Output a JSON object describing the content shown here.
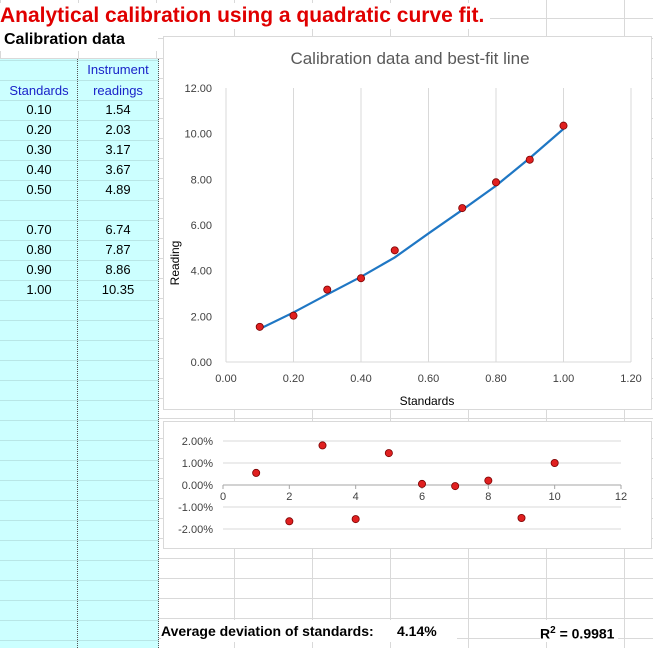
{
  "sheet": {
    "title": "Analytical calibration using a quadratic curve fit.",
    "section_title": "Calibration data",
    "columns": {
      "standards_header": "Standards",
      "readings_header_line1": "Instrument",
      "readings_header_line2": "readings"
    },
    "rows": [
      {
        "standard": "0.10",
        "reading": "1.54"
      },
      {
        "standard": "0.20",
        "reading": "2.03"
      },
      {
        "standard": "0.30",
        "reading": "3.17"
      },
      {
        "standard": "0.40",
        "reading": "3.67"
      },
      {
        "standard": "0.50",
        "reading": "4.89"
      },
      {
        "standard": "",
        "reading": ""
      },
      {
        "standard": "0.70",
        "reading": "6.74"
      },
      {
        "standard": "0.80",
        "reading": "7.87"
      },
      {
        "standard": "0.90",
        "reading": "8.86"
      },
      {
        "standard": "1.00",
        "reading": "10.35"
      }
    ],
    "avg_label": "Average deviation of standards:",
    "avg_value": "4.14%",
    "r2_label": "R",
    "r2_sup": "2",
    "r2_value": " = 0.9981"
  },
  "colors": {
    "title": "#e00000",
    "header_text": "#1a23c9",
    "data_bg": "#ccffff",
    "line": "#1f77c4",
    "marker": "#e02020"
  },
  "chart_data": [
    {
      "type": "scatter",
      "title": "Calibration data and best-fit line",
      "xlabel": "Standards",
      "ylabel": "Reading",
      "xlim": [
        0,
        1.2
      ],
      "ylim": [
        0,
        12
      ],
      "xticks": [
        "0.00",
        "0.20",
        "0.40",
        "0.60",
        "0.80",
        "1.00",
        "1.20"
      ],
      "yticks": [
        "0.00",
        "2.00",
        "4.00",
        "6.00",
        "8.00",
        "10.00",
        "12.00"
      ],
      "grid": "vertical",
      "points": {
        "x": [
          0.1,
          0.2,
          0.3,
          0.4,
          0.5,
          0.7,
          0.8,
          0.9,
          1.0
        ],
        "y": [
          1.54,
          2.03,
          3.17,
          3.67,
          4.89,
          6.74,
          7.87,
          8.86,
          10.35
        ]
      },
      "fit_line": {
        "x": [
          0.1,
          0.2,
          0.3,
          0.4,
          0.5,
          0.6,
          0.7,
          0.8,
          0.9,
          1.0
        ],
        "y": [
          1.45,
          2.17,
          2.96,
          3.73,
          4.58,
          5.63,
          6.66,
          7.72,
          8.93,
          10.21
        ]
      }
    },
    {
      "type": "scatter",
      "xlim": [
        0,
        12
      ],
      "ylim": [
        -2,
        2
      ],
      "xticks": [
        "0",
        "2",
        "4",
        "6",
        "8",
        "10",
        "12"
      ],
      "yticks": [
        "2.00%",
        "1.00%",
        "0.00%",
        "-1.00%",
        "-2.00%"
      ],
      "grid": "horizontal",
      "points": {
        "x": [
          1,
          2,
          3,
          4,
          5,
          6,
          7,
          8,
          9,
          10
        ],
        "y": [
          0.55,
          -1.65,
          1.8,
          -1.55,
          1.45,
          0.05,
          -0.05,
          0.2,
          -1.5,
          1.0
        ]
      }
    }
  ]
}
